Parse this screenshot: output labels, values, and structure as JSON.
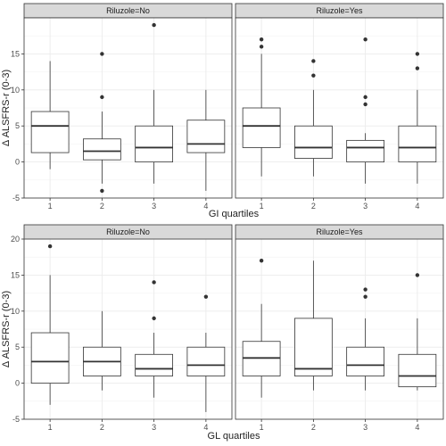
{
  "chart_data": [
    {
      "type": "boxplot",
      "xlabel": "GI quartiles",
      "ylabel": "Δ ALSFRS-r (0-3)",
      "categories": [
        "1",
        "2",
        "3",
        "4"
      ],
      "ylim": [
        -5,
        20
      ],
      "yticks": [
        -5,
        0,
        5,
        10,
        15
      ],
      "grid": true,
      "panels": [
        {
          "label": "Riluzole=No",
          "boxes": [
            {
              "category": "1",
              "whisker_low": -1,
              "q1": 1.3,
              "median": 5,
              "q3": 7,
              "whisker_high": 14,
              "outliers": []
            },
            {
              "category": "2",
              "whisker_low": -3,
              "q1": 0.3,
              "median": 1.5,
              "q3": 3.2,
              "whisker_high": 7,
              "outliers": [
                15,
                9,
                -4
              ]
            },
            {
              "category": "3",
              "whisker_low": -3,
              "q1": 0,
              "median": 2,
              "q3": 5,
              "whisker_high": 10,
              "outliers": [
                19
              ]
            },
            {
              "category": "4",
              "whisker_low": -4,
              "q1": 1.3,
              "median": 2.5,
              "q3": 5.8,
              "whisker_high": 10,
              "outliers": []
            }
          ]
        },
        {
          "label": "Riluzole=Yes",
          "boxes": [
            {
              "category": "1",
              "whisker_low": -2,
              "q1": 2,
              "median": 5,
              "q3": 7.5,
              "whisker_high": 15,
              "outliers": [
                17,
                16
              ]
            },
            {
              "category": "2",
              "whisker_low": -2,
              "q1": 0.5,
              "median": 2,
              "q3": 5,
              "whisker_high": 10,
              "outliers": [
                14,
                12
              ]
            },
            {
              "category": "3",
              "whisker_low": -3,
              "q1": 0,
              "median": 2,
              "q3": 3,
              "whisker_high": 4,
              "outliers": [
                17,
                9,
                8
              ]
            },
            {
              "category": "4",
              "whisker_low": -3,
              "q1": 0,
              "median": 2,
              "q3": 5,
              "whisker_high": 10,
              "outliers": [
                15,
                13
              ]
            }
          ]
        }
      ]
    },
    {
      "type": "boxplot",
      "xlabel": "GL quartiles",
      "ylabel": "Δ ALSFRS-r (0-3)",
      "categories": [
        "1",
        "2",
        "3",
        "4"
      ],
      "ylim": [
        -5,
        20
      ],
      "yticks": [
        -5,
        0,
        5,
        10,
        15,
        20
      ],
      "grid": true,
      "panels": [
        {
          "label": "Riluzole=No",
          "boxes": [
            {
              "category": "1",
              "whisker_low": -3,
              "q1": 0,
              "median": 3,
              "q3": 7,
              "whisker_high": 15,
              "outliers": [
                19
              ]
            },
            {
              "category": "2",
              "whisker_low": -1,
              "q1": 1,
              "median": 3,
              "q3": 5,
              "whisker_high": 10,
              "outliers": []
            },
            {
              "category": "3",
              "whisker_low": -2,
              "q1": 1,
              "median": 2,
              "q3": 4,
              "whisker_high": 7,
              "outliers": [
                14,
                9
              ]
            },
            {
              "category": "4",
              "whisker_low": -4,
              "q1": 1,
              "median": 2.5,
              "q3": 5,
              "whisker_high": 7,
              "outliers": [
                12
              ]
            }
          ]
        },
        {
          "label": "Riluzole=Yes",
          "boxes": [
            {
              "category": "1",
              "whisker_low": -2,
              "q1": 1,
              "median": 3.5,
              "q3": 5.8,
              "whisker_high": 11,
              "outliers": [
                17
              ]
            },
            {
              "category": "2",
              "whisker_low": -1,
              "q1": 1,
              "median": 2,
              "q3": 9,
              "whisker_high": 17,
              "outliers": []
            },
            {
              "category": "3",
              "whisker_low": -1,
              "q1": 1,
              "median": 2.5,
              "q3": 5,
              "whisker_high": 9,
              "outliers": [
                13,
                12
              ]
            },
            {
              "category": "4",
              "whisker_low": -1,
              "q1": -0.5,
              "median": 1,
              "q3": 4,
              "whisker_high": 9,
              "outliers": [
                15
              ]
            }
          ]
        }
      ]
    }
  ]
}
